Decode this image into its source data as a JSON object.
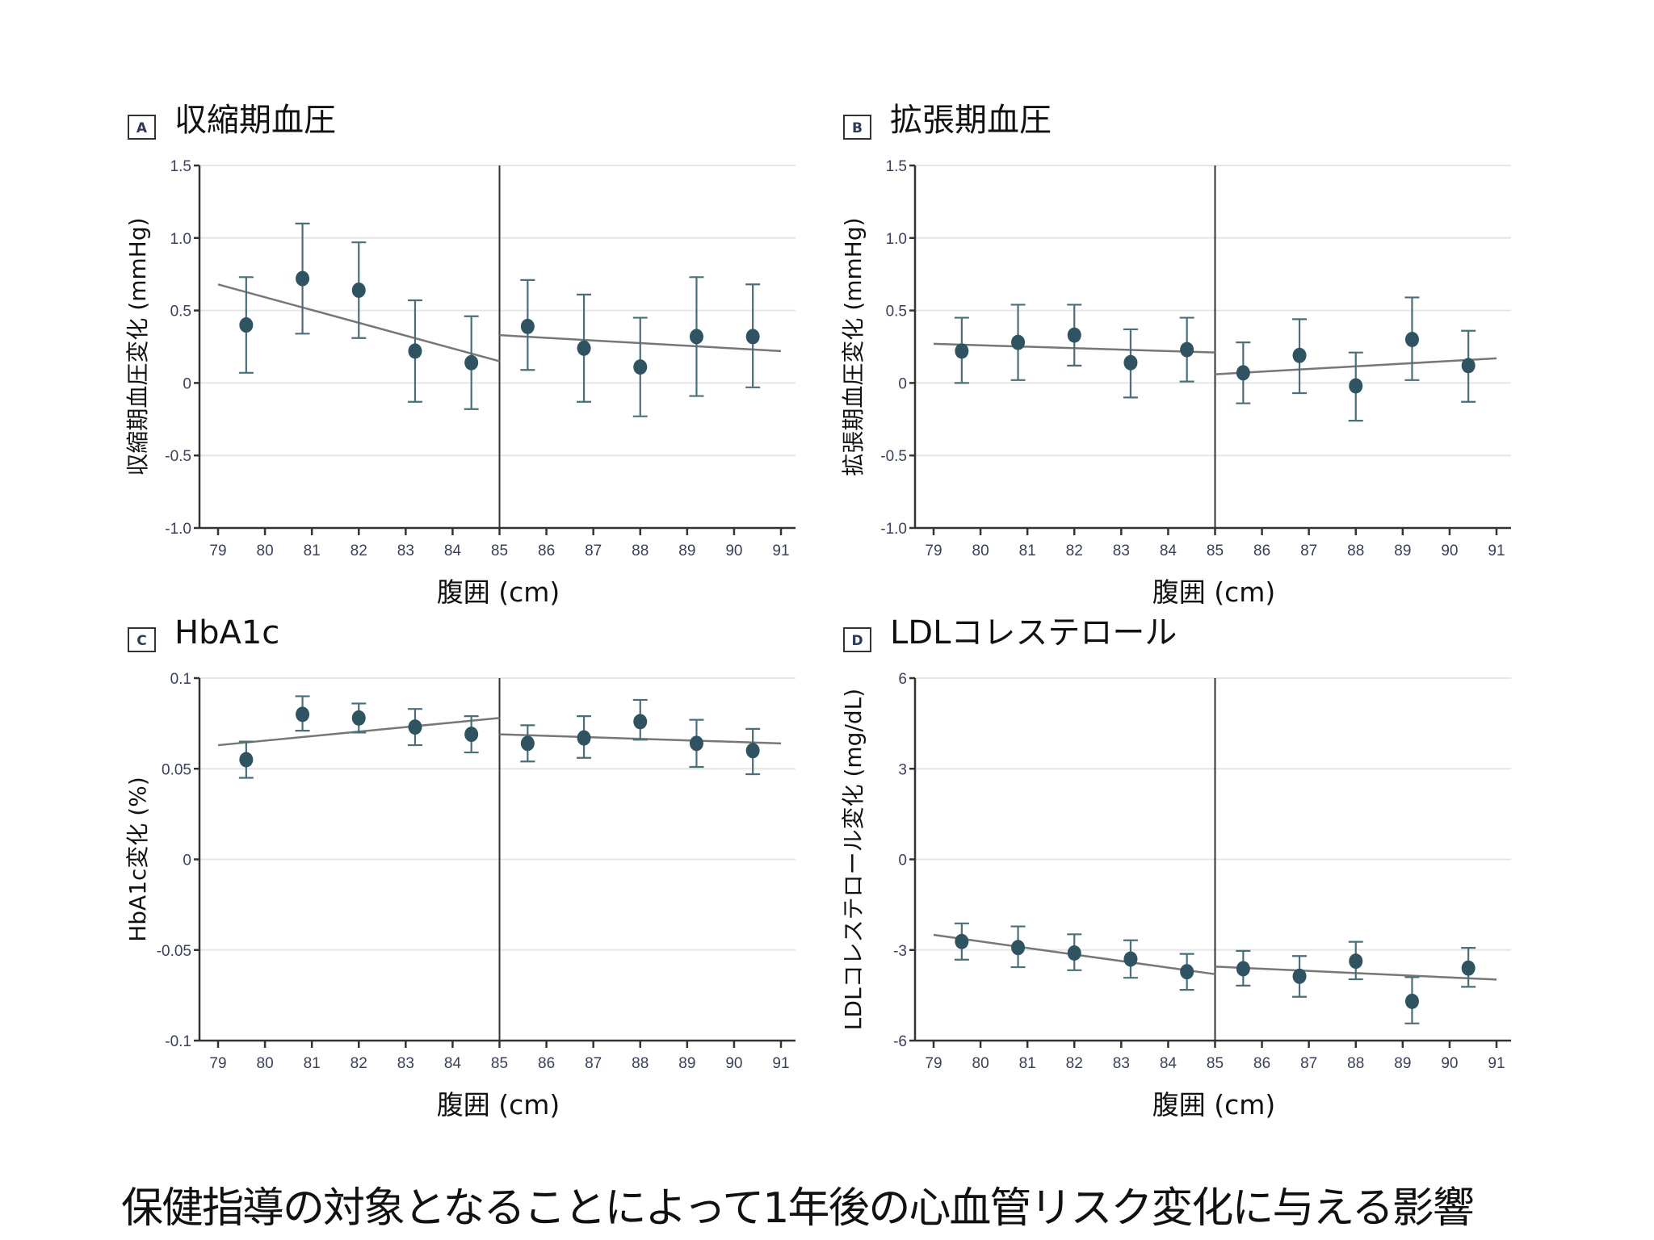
{
  "figure_title": "保健指導の対象となることによって1年後の心血管リスク変化に与える影響",
  "chart_data": [
    {
      "type": "scatter",
      "panel": "A",
      "title": "収縮期血圧",
      "xlabel": "腹囲 (cm)",
      "ylabel": "収縮期血圧変化 (mmHg)",
      "xlim": [
        79,
        91
      ],
      "ylim": [
        -1.0,
        1.5
      ],
      "xticks": [
        79,
        80,
        81,
        82,
        83,
        84,
        85,
        86,
        87,
        88,
        89,
        90,
        91
      ],
      "yticks": [
        -1.0,
        -0.5,
        0,
        0.5,
        1.0,
        1.5
      ],
      "ytick_labels": [
        "-1.0",
        "-0.5",
        "0",
        "0.5",
        "1.0",
        "1.5"
      ],
      "grid": true,
      "cutoff": 85,
      "points": [
        {
          "x": 79.6,
          "y": 0.4,
          "lo": 0.07,
          "hi": 0.73
        },
        {
          "x": 80.8,
          "y": 0.72,
          "lo": 0.34,
          "hi": 1.1
        },
        {
          "x": 82.0,
          "y": 0.64,
          "lo": 0.31,
          "hi": 0.97
        },
        {
          "x": 83.2,
          "y": 0.22,
          "lo": -0.13,
          "hi": 0.57
        },
        {
          "x": 84.4,
          "y": 0.14,
          "lo": -0.18,
          "hi": 0.46
        },
        {
          "x": 85.6,
          "y": 0.39,
          "lo": 0.09,
          "hi": 0.71
        },
        {
          "x": 86.8,
          "y": 0.24,
          "lo": -0.13,
          "hi": 0.61
        },
        {
          "x": 88.0,
          "y": 0.11,
          "lo": -0.23,
          "hi": 0.45
        },
        {
          "x": 89.2,
          "y": 0.32,
          "lo": -0.09,
          "hi": 0.73
        },
        {
          "x": 90.4,
          "y": 0.32,
          "lo": -0.03,
          "hi": 0.68
        }
      ],
      "trend_lines": [
        {
          "x": [
            79,
            85
          ],
          "y": [
            0.68,
            0.15
          ]
        },
        {
          "x": [
            85,
            91
          ],
          "y": [
            0.33,
            0.22
          ]
        }
      ]
    },
    {
      "type": "scatter",
      "panel": "B",
      "title": "拡張期血圧",
      "xlabel": "腹囲 (cm)",
      "ylabel": "拡張期血圧変化 (mmHg)",
      "xlim": [
        79,
        91
      ],
      "ylim": [
        -1.0,
        1.5
      ],
      "xticks": [
        79,
        80,
        81,
        82,
        83,
        84,
        85,
        86,
        87,
        88,
        89,
        90,
        91
      ],
      "yticks": [
        -1.0,
        -0.5,
        0,
        0.5,
        1.0,
        1.5
      ],
      "ytick_labels": [
        "-1.0",
        "-0.5",
        "0",
        "0.5",
        "1.0",
        "1.5"
      ],
      "grid": true,
      "cutoff": 85,
      "points": [
        {
          "x": 79.6,
          "y": 0.22,
          "lo": 0.0,
          "hi": 0.45
        },
        {
          "x": 80.8,
          "y": 0.28,
          "lo": 0.02,
          "hi": 0.54
        },
        {
          "x": 82.0,
          "y": 0.33,
          "lo": 0.12,
          "hi": 0.54
        },
        {
          "x": 83.2,
          "y": 0.14,
          "lo": -0.1,
          "hi": 0.37
        },
        {
          "x": 84.4,
          "y": 0.23,
          "lo": 0.01,
          "hi": 0.45
        },
        {
          "x": 85.6,
          "y": 0.07,
          "lo": -0.14,
          "hi": 0.28
        },
        {
          "x": 86.8,
          "y": 0.19,
          "lo": -0.07,
          "hi": 0.44
        },
        {
          "x": 88.0,
          "y": -0.02,
          "lo": -0.26,
          "hi": 0.21
        },
        {
          "x": 89.2,
          "y": 0.3,
          "lo": 0.02,
          "hi": 0.59
        },
        {
          "x": 90.4,
          "y": 0.12,
          "lo": -0.13,
          "hi": 0.36
        }
      ],
      "trend_lines": [
        {
          "x": [
            79,
            85
          ],
          "y": [
            0.27,
            0.21
          ]
        },
        {
          "x": [
            85,
            91
          ],
          "y": [
            0.06,
            0.17
          ]
        }
      ]
    },
    {
      "type": "scatter",
      "panel": "C",
      "title": "HbA1c",
      "xlabel": "腹囲 (cm)",
      "ylabel": "HbA1c変化 (%)",
      "xlim": [
        79,
        91
      ],
      "ylim": [
        -0.1,
        0.1
      ],
      "xticks": [
        79,
        80,
        81,
        82,
        83,
        84,
        85,
        86,
        87,
        88,
        89,
        90,
        91
      ],
      "yticks": [
        -0.1,
        -0.05,
        0,
        0.05,
        0.1
      ],
      "ytick_labels": [
        "-0.1",
        "-0.05",
        "0",
        "0.05",
        "0.1"
      ],
      "grid": true,
      "cutoff": 85,
      "points": [
        {
          "x": 79.6,
          "y": 0.055,
          "lo": 0.045,
          "hi": 0.065
        },
        {
          "x": 80.8,
          "y": 0.08,
          "lo": 0.071,
          "hi": 0.09
        },
        {
          "x": 82.0,
          "y": 0.078,
          "lo": 0.07,
          "hi": 0.086
        },
        {
          "x": 83.2,
          "y": 0.073,
          "lo": 0.063,
          "hi": 0.083
        },
        {
          "x": 84.4,
          "y": 0.069,
          "lo": 0.059,
          "hi": 0.079
        },
        {
          "x": 85.6,
          "y": 0.064,
          "lo": 0.054,
          "hi": 0.074
        },
        {
          "x": 86.8,
          "y": 0.067,
          "lo": 0.056,
          "hi": 0.079
        },
        {
          "x": 88.0,
          "y": 0.076,
          "lo": 0.066,
          "hi": 0.088
        },
        {
          "x": 89.2,
          "y": 0.064,
          "lo": 0.051,
          "hi": 0.077
        },
        {
          "x": 90.4,
          "y": 0.06,
          "lo": 0.047,
          "hi": 0.072
        }
      ],
      "trend_lines": [
        {
          "x": [
            79,
            85
          ],
          "y": [
            0.063,
            0.078
          ]
        },
        {
          "x": [
            85,
            91
          ],
          "y": [
            0.069,
            0.064
          ]
        }
      ]
    },
    {
      "type": "scatter",
      "panel": "D",
      "title": "LDLコレステロール",
      "xlabel": "腹囲 (cm)",
      "ylabel": "LDLコレステロール変化 (mg/dL)",
      "xlim": [
        79,
        91
      ],
      "ylim": [
        -6,
        6
      ],
      "xticks": [
        79,
        80,
        81,
        82,
        83,
        84,
        85,
        86,
        87,
        88,
        89,
        90,
        91
      ],
      "yticks": [
        -6,
        -3,
        0,
        3,
        6
      ],
      "ytick_labels": [
        "-6",
        "-3",
        "0",
        "3",
        "6"
      ],
      "grid": true,
      "cutoff": 85,
      "points": [
        {
          "x": 79.6,
          "y": -2.72,
          "lo": -3.32,
          "hi": -2.12
        },
        {
          "x": 80.8,
          "y": -2.92,
          "lo": -3.57,
          "hi": -2.22
        },
        {
          "x": 82.0,
          "y": -3.1,
          "lo": -3.67,
          "hi": -2.48
        },
        {
          "x": 83.2,
          "y": -3.3,
          "lo": -3.92,
          "hi": -2.68
        },
        {
          "x": 84.4,
          "y": -3.72,
          "lo": -4.32,
          "hi": -3.13
        },
        {
          "x": 85.6,
          "y": -3.62,
          "lo": -4.18,
          "hi": -3.03
        },
        {
          "x": 86.8,
          "y": -3.87,
          "lo": -4.55,
          "hi": -3.2
        },
        {
          "x": 88.0,
          "y": -3.37,
          "lo": -3.97,
          "hi": -2.73
        },
        {
          "x": 89.2,
          "y": -4.7,
          "lo": -5.43,
          "hi": -3.9
        },
        {
          "x": 90.4,
          "y": -3.6,
          "lo": -4.22,
          "hi": -2.93
        }
      ],
      "trend_lines": [
        {
          "x": [
            79,
            85
          ],
          "y": [
            -2.5,
            -3.8
          ]
        },
        {
          "x": [
            85,
            91
          ],
          "y": [
            -3.55,
            -3.98
          ]
        }
      ]
    }
  ]
}
